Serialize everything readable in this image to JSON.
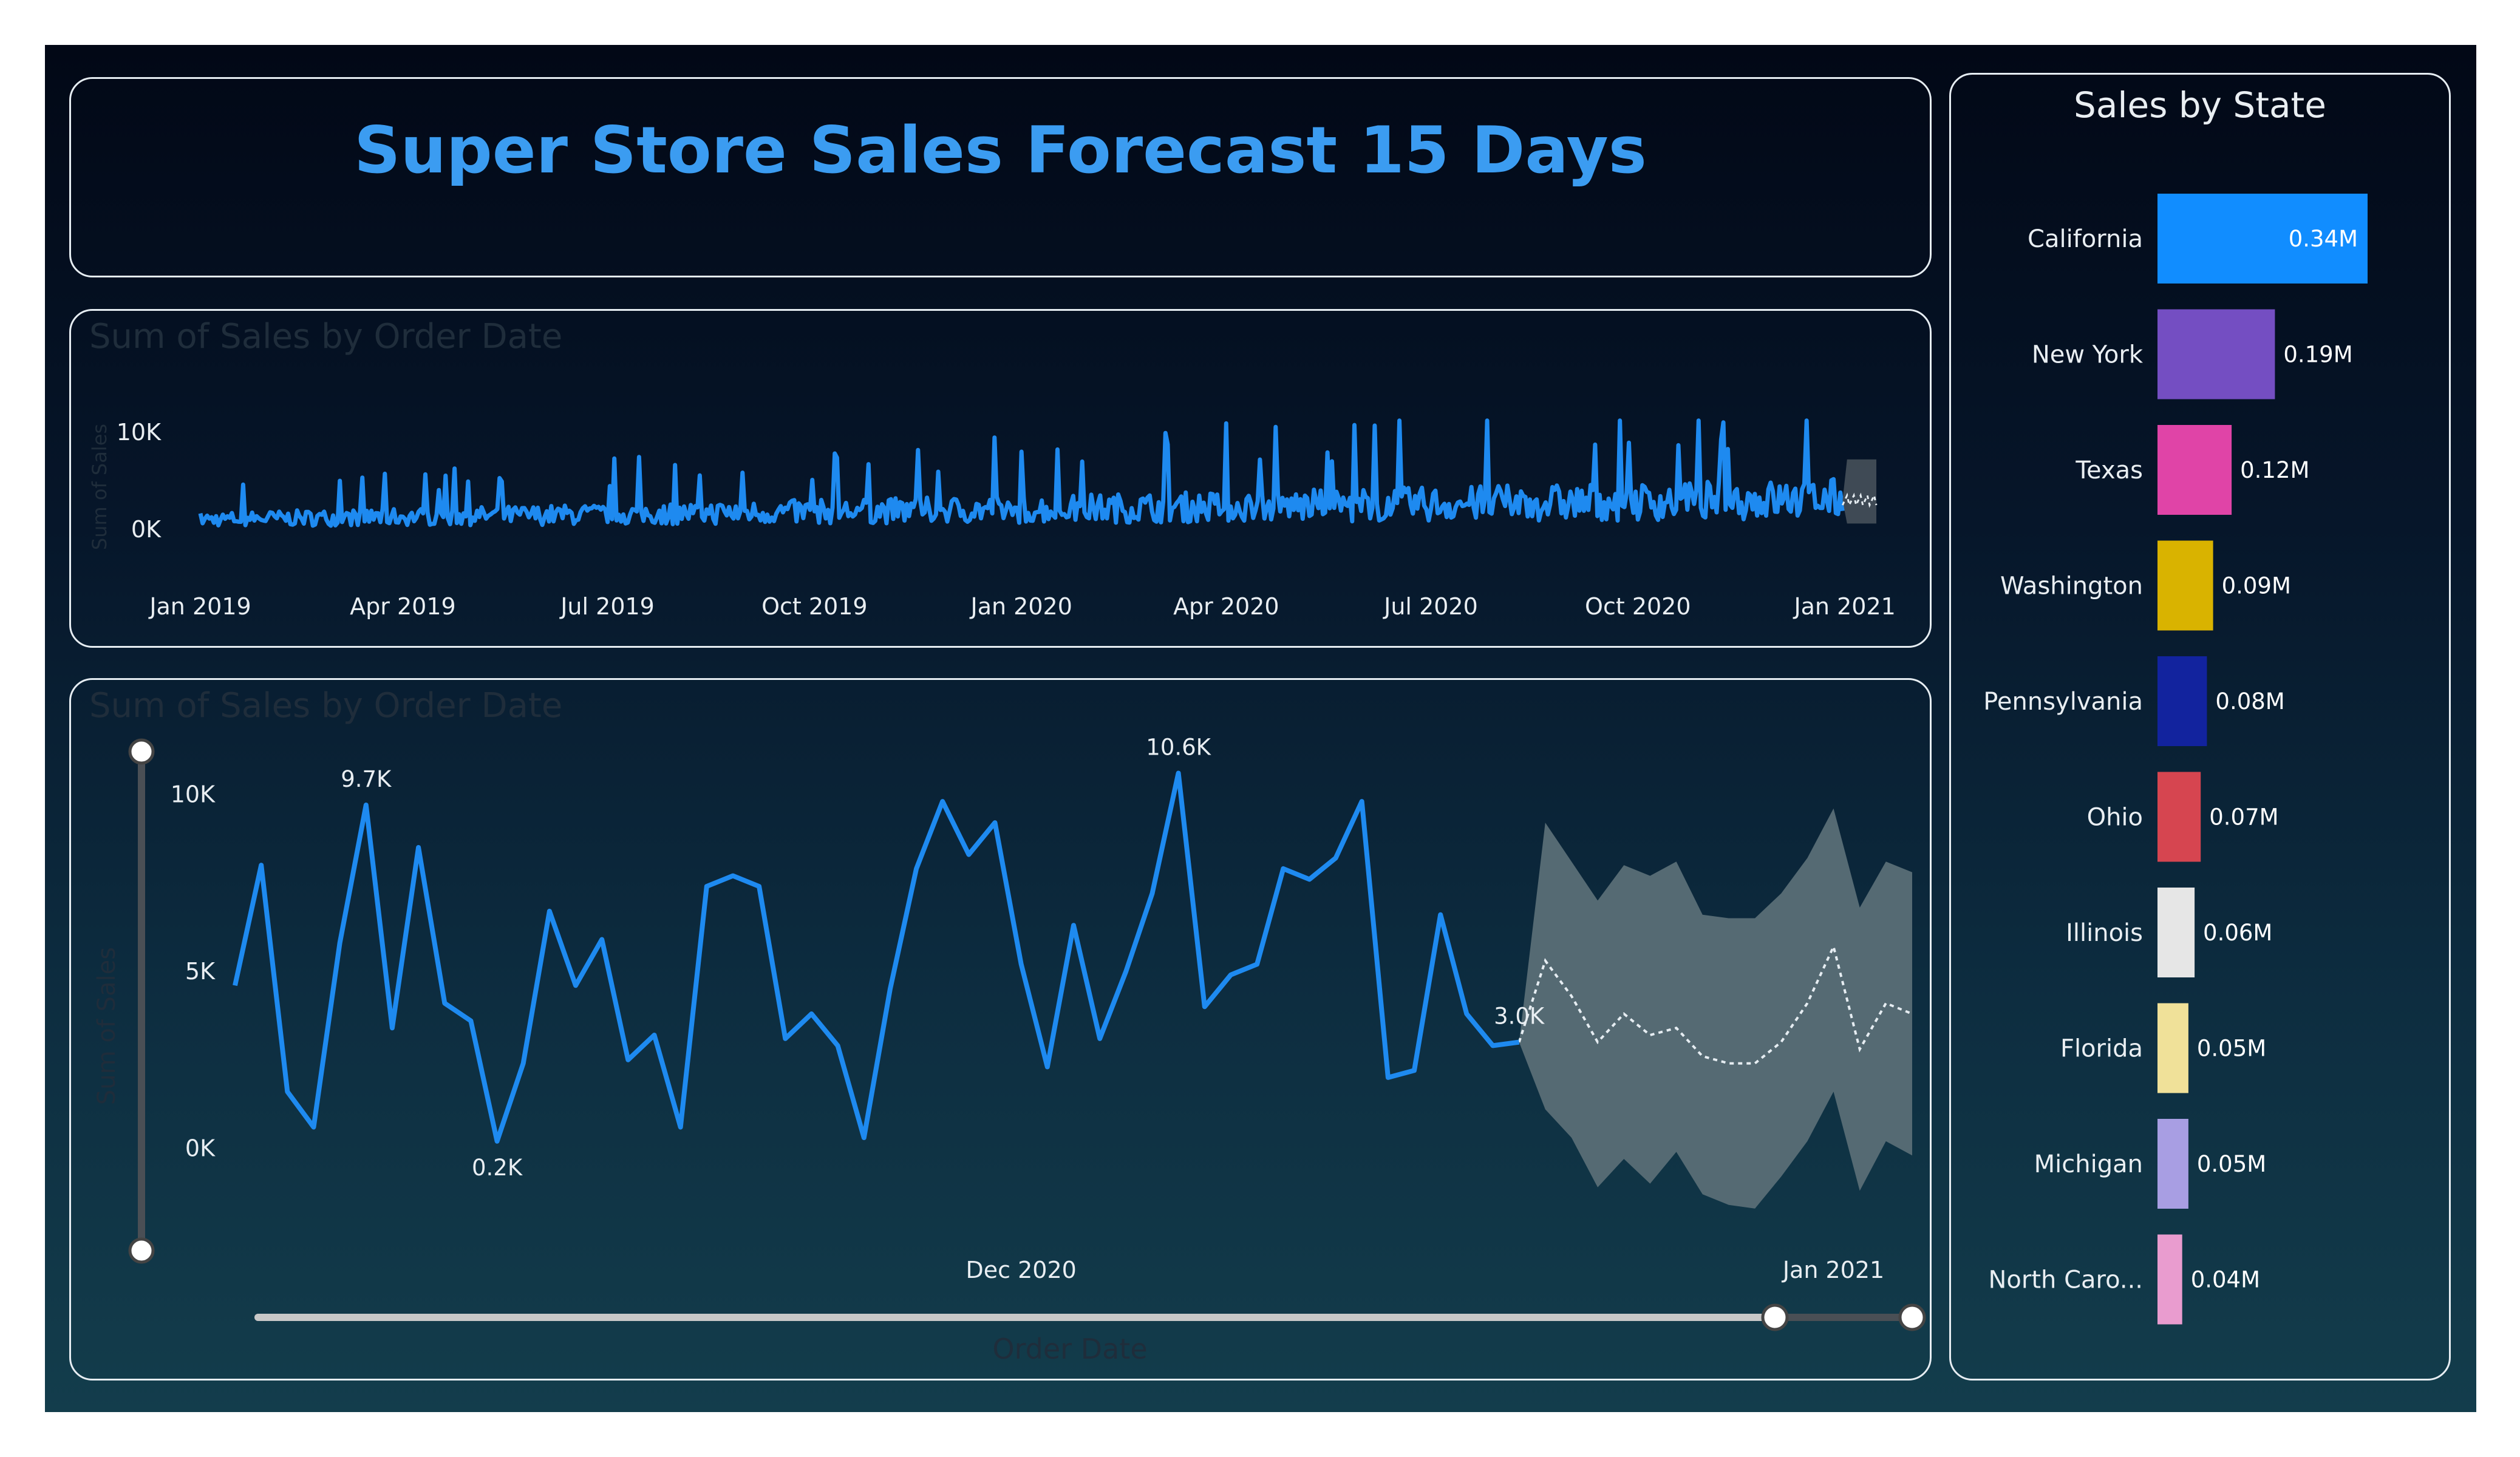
{
  "title": "Super Store Sales Forecast 15 Days",
  "colors": {
    "accent": "#3b9cf1",
    "series": "#1e8af0",
    "forecast_band": "#5a6e76"
  },
  "chart_data": [
    {
      "type": "line",
      "title": "Sum of Sales by Order Date",
      "ylabel": "Sum of Sales",
      "ylim": [
        0,
        10000
      ],
      "yticks": [
        {
          "value": 10000,
          "label": "10K"
        },
        {
          "value": 0,
          "label": "0K"
        }
      ],
      "xticks": [
        "Jan 2019",
        "Apr 2019",
        "Jul 2019",
        "Oct 2019",
        "Jan 2020",
        "Apr 2020",
        "Jul 2020",
        "Oct 2020",
        "Jan 2021"
      ],
      "forecast": {
        "start": "2020-12-31",
        "days": 15
      },
      "grid": false,
      "legend": "none"
    },
    {
      "type": "line",
      "title": "Sum of Sales by Order Date",
      "xlabel": "Order Date",
      "ylabel": "Sum of Sales",
      "ylim": [
        -1500,
        11500
      ],
      "yticks": [
        {
          "value": 10000,
          "label": "10K"
        },
        {
          "value": 5000,
          "label": "5K"
        },
        {
          "value": 0,
          "label": "0K"
        }
      ],
      "xticks": [
        {
          "date": "2020-12-01",
          "label": "Dec 2020"
        },
        {
          "date": "2021-01-01",
          "label": "Jan 2021"
        }
      ],
      "x_start": "2020-11-01",
      "values": [
        4600,
        8000,
        1600,
        600,
        5800,
        9700,
        3400,
        8500,
        4100,
        3600,
        200,
        2400,
        6700,
        4600,
        5900,
        2500,
        3200,
        600,
        7400,
        7700,
        7400,
        3100,
        3800,
        2900,
        300,
        4500,
        7900,
        9800,
        8300,
        9200,
        5200,
        2300,
        6300,
        3100,
        5000,
        7200,
        10600,
        4000,
        4900,
        5200,
        7900,
        7600,
        8200,
        9800,
        2000,
        2200,
        6600,
        3800,
        2900,
        3000
      ],
      "data_labels": [
        {
          "index": 5,
          "text": "9.7K"
        },
        {
          "index": 10,
          "text": "0.2K"
        },
        {
          "index": 36,
          "text": "10.6K"
        },
        {
          "index": 49,
          "text": "3.0K"
        }
      ],
      "forecast": {
        "mean": [
          3000,
          5300,
          4300,
          3000,
          3800,
          3200,
          3400,
          2600,
          2400,
          2400,
          3000,
          4100,
          5700,
          2800,
          4100,
          3800
        ],
        "upper": [
          3000,
          9200,
          8100,
          7000,
          8000,
          7700,
          8100,
          6600,
          6500,
          6500,
          7200,
          8200,
          9600,
          6800,
          8100,
          7800
        ],
        "lower": [
          3000,
          1100,
          300,
          -1100,
          -300,
          -1000,
          -100,
          -1300,
          -1600,
          -1700,
          -800,
          200,
          1600,
          -1200,
          200,
          -200
        ]
      },
      "grid": false,
      "legend": "none"
    },
    {
      "type": "bar",
      "orientation": "horizontal",
      "title": "Sales by State",
      "categories": [
        "California",
        "New York",
        "Texas",
        "Washington",
        "Pennsylvania",
        "Ohio",
        "Illinois",
        "Florida",
        "Michigan",
        "North Caro..."
      ],
      "values": [
        0.34,
        0.19,
        0.12,
        0.09,
        0.08,
        0.07,
        0.06,
        0.05,
        0.05,
        0.04
      ],
      "value_labels": [
        "0.34M",
        "0.19M",
        "0.12M",
        "0.09M",
        "0.08M",
        "0.07M",
        "0.06M",
        "0.05M",
        "0.05M",
        "0.04M"
      ],
      "unit": "M",
      "colors": [
        "#118dff",
        "#744ec2",
        "#e044a7",
        "#d9b300",
        "#12239e",
        "#d64550",
        "#e6e6e6",
        "#f0e199",
        "#a89ee3",
        "#e99ccf"
      ],
      "xlim": [
        0,
        0.34
      ]
    }
  ]
}
